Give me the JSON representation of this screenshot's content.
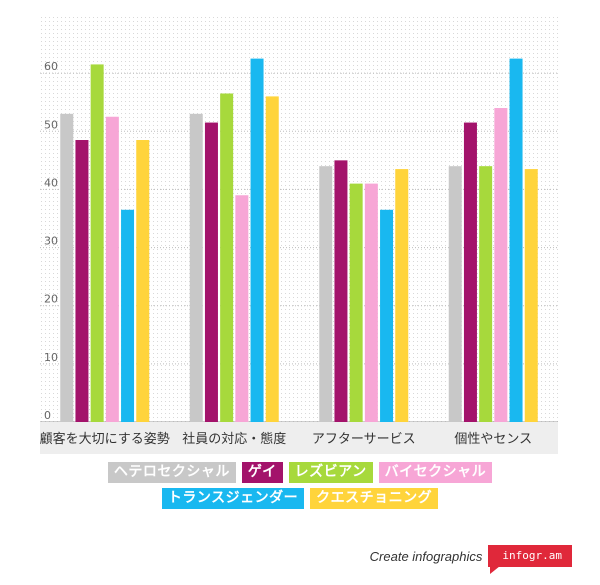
{
  "chart_data": {
    "type": "bar",
    "title": "",
    "xlabel": "",
    "ylabel": "",
    "ylim": [
      0,
      70
    ],
    "yticks": [
      0,
      10,
      20,
      30,
      40,
      50,
      60
    ],
    "grid": true,
    "legend_position": "bottom",
    "categories": [
      "顧客を大切にする姿勢",
      "社員の対応・態度",
      "アフターサービス",
      "個性やセンス"
    ],
    "series": [
      {
        "name": "ヘテロセクシャル",
        "color": "#c8c8c8",
        "values": [
          53,
          53,
          44,
          44
        ]
      },
      {
        "name": "ゲイ",
        "color": "#a3136b",
        "values": [
          48.5,
          51.5,
          45,
          51.5
        ]
      },
      {
        "name": "レズビアン",
        "color": "#a7d93c",
        "values": [
          61.5,
          56.5,
          41,
          44
        ]
      },
      {
        "name": "バイセクシャル",
        "color": "#f7a6d6",
        "values": [
          52.5,
          39,
          41,
          54
        ]
      },
      {
        "name": "トランスジェンダー",
        "color": "#19b8f0",
        "values": [
          36.5,
          62.5,
          36.5,
          62.5
        ]
      },
      {
        "name": "クエスチョニング",
        "color": "#ffd43b",
        "values": [
          48.5,
          56,
          43.5,
          43.5
        ]
      }
    ]
  },
  "footer": {
    "text": "Create infographics",
    "brand": "infogr.am"
  }
}
